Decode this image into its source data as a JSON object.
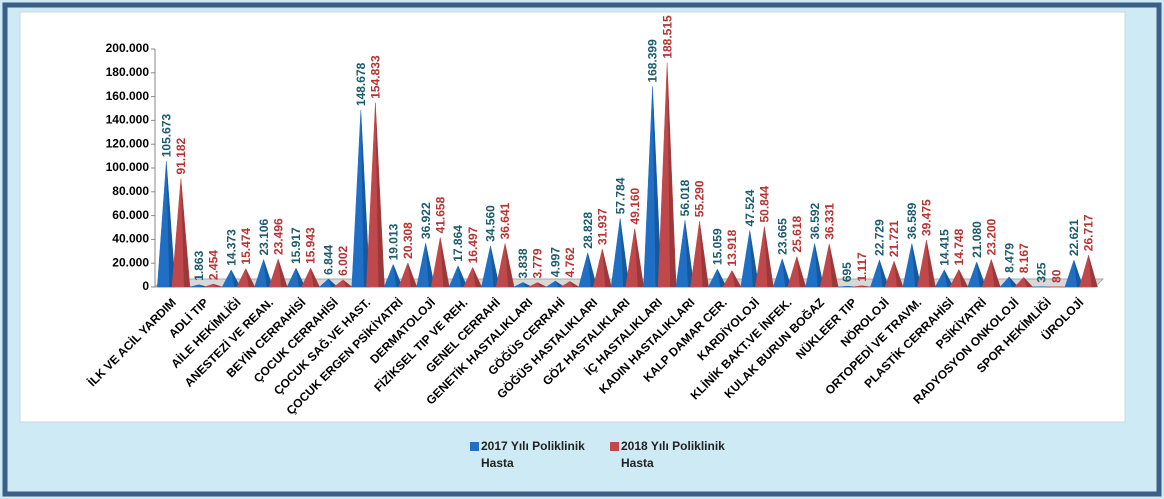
{
  "chart_data": {
    "type": "spike",
    "categories": [
      "İLK VE ACİL YARDIM",
      "ADLİ TIP",
      "AİLE HEKİMLİĞİ",
      "ANESTEZİ VE REAN.",
      "BEYİN CERRAHİSİ",
      "ÇOCUK CERRAHİSİ",
      "ÇOCUK SAĞ.VE HAST.",
      "ÇOCUK ERGEN PSİKİYATRİ",
      "DERMATOLOJİ",
      "FİZİKSEL TIP VE REH.",
      "GENEL CERRAHİ",
      "GENETİK HASTALIKLARI",
      "GÖĞÜS CERRAHİ",
      "GÖĞÜS HASTALIKLARI",
      "GÖZ HASTALIKLARI",
      "İÇ HASTALIKLARI",
      "KADIN HASTALIKLARI",
      "KALP DAMAR CER.",
      "KARDİYOLOJİ",
      "KLİNİK BAKT.VE İNFEK.",
      "KULAK BURUN BOĞAZ",
      "NÜKLEER TIP",
      "NÖROLOJİ",
      "ORTOPEDİ VE TRAVM.",
      "PLASTİK CERRAHİSİ",
      "PSİKİYATRİ",
      "RADYOSYON ONKOLOJİ",
      "SPOR HEKİMLİĞİ",
      "ÜROLOJİ"
    ],
    "series": [
      {
        "name": "2017 Yılı Poliklinik Hasta",
        "color": "#1f6fc4",
        "label_color": "#1d5a6e",
        "values": [
          105673,
          1863,
          14373,
          23106,
          15917,
          6844,
          148678,
          19013,
          36922,
          17864,
          34560,
          3838,
          4997,
          28828,
          57784,
          168399,
          56018,
          15059,
          47524,
          23665,
          36592,
          695,
          22729,
          36589,
          14415,
          21080,
          8479,
          325,
          22621
        ],
        "value_labels": [
          "105.673",
          "1.863",
          "14.373",
          "23.106",
          "15.917",
          "6.844",
          "148.678",
          "19.013",
          "36.922",
          "17.864",
          "34.560",
          "3.838",
          "4.997",
          "28.828",
          "57.784",
          "168.399",
          "56.018",
          "15.059",
          "47.524",
          "23.665",
          "36.592",
          "695",
          "22.729",
          "36.589",
          "14.415",
          "21.080",
          "8.479",
          "325",
          "22.621"
        ]
      },
      {
        "name": "2018 Yılı Poliklinik Hasta",
        "color": "#c0484a",
        "label_color": "#b83232",
        "values": [
          91182,
          2454,
          15474,
          23496,
          15943,
          6002,
          154833,
          20308,
          41658,
          16497,
          36641,
          3779,
          4762,
          31937,
          49160,
          188515,
          55290,
          13918,
          50844,
          25618,
          36331,
          1117,
          21721,
          39475,
          14748,
          23200,
          8167,
          80,
          26717
        ],
        "value_labels": [
          "91.182",
          "2.454",
          "15.474",
          "23.496",
          "15.943",
          "6.002",
          "154.833",
          "20.308",
          "41.658",
          "16.497",
          "36.641",
          "3.779",
          "4.762",
          "31.937",
          "49.160",
          "188.515",
          "55.290",
          "13.918",
          "50.844",
          "25.618",
          "36.331",
          "1.117",
          "21.721",
          "39.475",
          "14.748",
          "23.200",
          "8.167",
          "80",
          "26.717"
        ]
      }
    ],
    "ylim": [
      0,
      200000
    ],
    "yticks": [
      0,
      {
        "value": 20000,
        "label": "20.000"
      },
      {
        "value": 40000,
        "label": "40.000"
      },
      {
        "value": 60000,
        "label": "60.000"
      },
      {
        "value": 80000,
        "label": "80.000"
      },
      {
        "value": 100000,
        "label": "100.000"
      },
      {
        "value": 120000,
        "label": "120.000"
      },
      {
        "value": 140000,
        "label": "140.000"
      },
      {
        "value": 160000,
        "label": "160.000"
      },
      {
        "value": 180000,
        "label": "180.000"
      },
      {
        "value": 200000,
        "label": "200.000"
      }
    ]
  }
}
